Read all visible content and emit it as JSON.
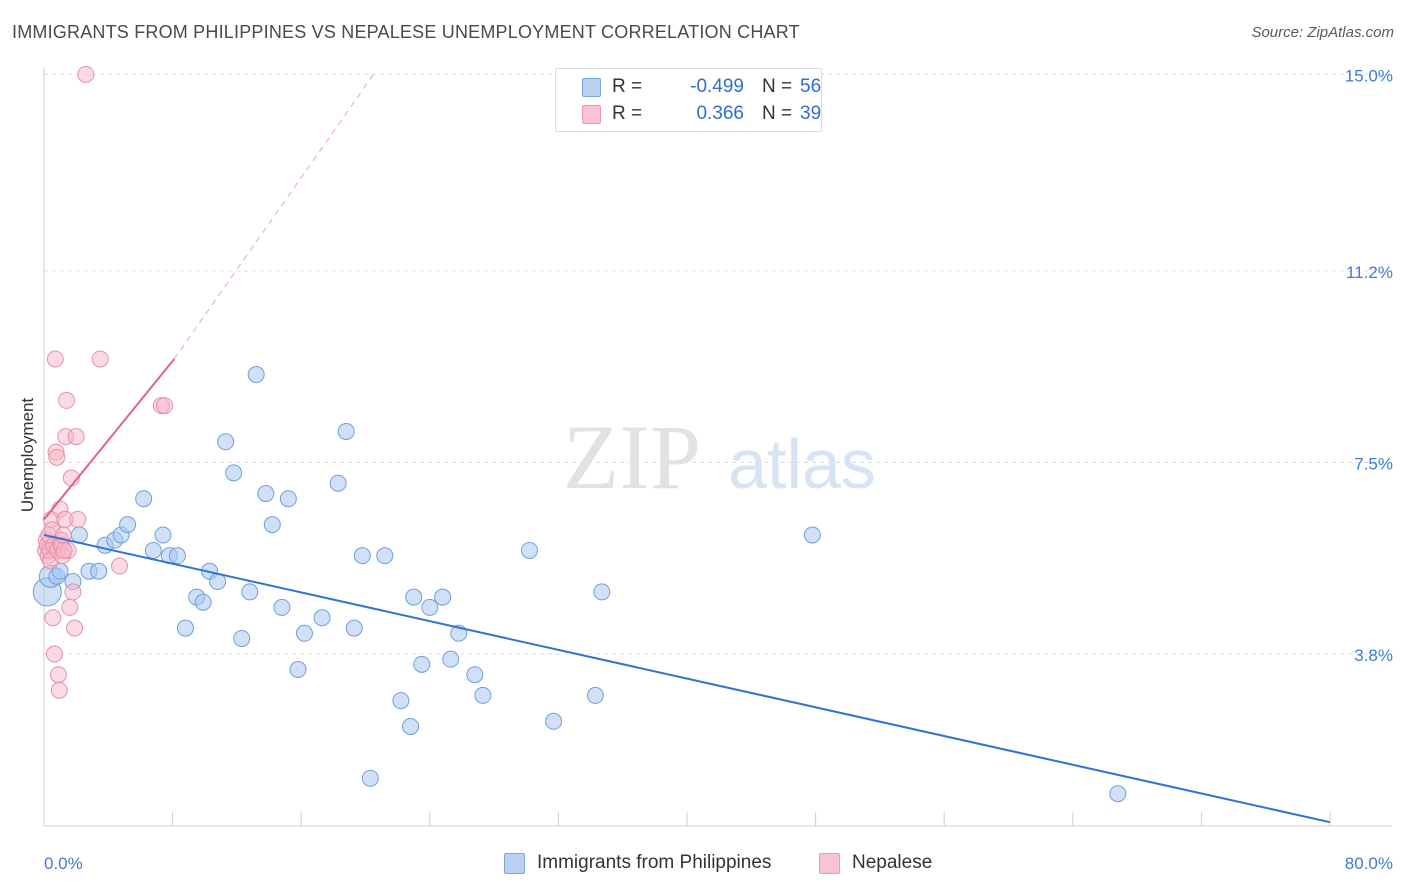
{
  "header": {
    "title": "IMMIGRANTS FROM PHILIPPINES VS NEPALESE UNEMPLOYMENT CORRELATION CHART",
    "source": "Source: ZipAtlas.com"
  },
  "watermark": {
    "zip": "ZIP",
    "atlas": "atlas"
  },
  "legend_top": [
    {
      "label": "R =",
      "r": "-0.499",
      "n_label": "N =",
      "n": "56"
    },
    {
      "label": "R =",
      "r": "0.366",
      "n_label": "N =",
      "n": "39"
    }
  ],
  "legend_bottom": [
    {
      "label": "Immigrants from Philippines"
    },
    {
      "label": "Nepalese"
    }
  ],
  "colors": {
    "blue_fill": "#a9c8f0",
    "blue_stroke": "#6e9fdc",
    "blue_line": "#2f74d0",
    "pink_fill": "#f6b5c8",
    "pink_stroke": "#e890ab",
    "pink_line": "#e0628a",
    "tick_label": "#3f7bd4",
    "grid": "#dddddd"
  },
  "chart_data": {
    "type": "scatter",
    "title": "IMMIGRANTS FROM PHILIPPINES VS NEPALESE UNEMPLOYMENT CORRELATION CHART",
    "xlabel": "",
    "ylabel": "Unemployment",
    "xlim": [
      0,
      80
    ],
    "ylim": [
      0,
      15.5
    ],
    "x_tick_labels": [
      "0.0%",
      "80.0%"
    ],
    "y_ticks": [
      3.8,
      7.5,
      11.2,
      15.0
    ],
    "y_tick_labels": [
      "3.8%",
      "7.5%",
      "11.2%",
      "15.0%"
    ],
    "grid": true,
    "legend_position": "top-center",
    "series": [
      {
        "name": "Immigrants from Philippines",
        "R": -0.499,
        "N": 56,
        "trend": {
          "x": [
            0,
            80
          ],
          "y": [
            6.1,
            0.55
          ]
        },
        "points": [
          [
            0.2,
            5.0
          ],
          [
            0.4,
            5.3
          ],
          [
            0.8,
            5.3
          ],
          [
            1.0,
            5.4
          ],
          [
            1.8,
            5.2
          ],
          [
            2.2,
            6.1
          ],
          [
            2.8,
            5.4
          ],
          [
            3.4,
            5.4
          ],
          [
            3.8,
            5.9
          ],
          [
            4.4,
            6.0
          ],
          [
            4.8,
            6.1
          ],
          [
            5.2,
            6.3
          ],
          [
            6.2,
            6.8
          ],
          [
            6.8,
            5.8
          ],
          [
            7.4,
            6.1
          ],
          [
            7.8,
            5.7
          ],
          [
            8.3,
            5.7
          ],
          [
            8.8,
            4.3
          ],
          [
            9.5,
            4.9
          ],
          [
            9.9,
            4.8
          ],
          [
            10.3,
            5.4
          ],
          [
            10.8,
            5.2
          ],
          [
            11.3,
            7.9
          ],
          [
            11.8,
            7.3
          ],
          [
            12.3,
            4.1
          ],
          [
            12.8,
            5.0
          ],
          [
            13.2,
            9.2
          ],
          [
            13.8,
            6.9
          ],
          [
            14.2,
            6.3
          ],
          [
            14.8,
            4.7
          ],
          [
            15.2,
            6.8
          ],
          [
            15.8,
            3.5
          ],
          [
            16.2,
            4.2
          ],
          [
            17.3,
            4.5
          ],
          [
            18.3,
            7.1
          ],
          [
            18.8,
            8.1
          ],
          [
            19.3,
            4.3
          ],
          [
            19.8,
            5.7
          ],
          [
            20.3,
            1.4
          ],
          [
            21.2,
            5.7
          ],
          [
            22.2,
            2.9
          ],
          [
            22.8,
            2.4
          ],
          [
            23.0,
            4.9
          ],
          [
            23.5,
            3.6
          ],
          [
            24.0,
            4.7
          ],
          [
            24.8,
            4.9
          ],
          [
            25.3,
            3.7
          ],
          [
            25.8,
            4.2
          ],
          [
            26.8,
            3.4
          ],
          [
            27.3,
            3.0
          ],
          [
            30.2,
            5.8
          ],
          [
            31.7,
            2.5
          ],
          [
            34.3,
            3.0
          ],
          [
            34.7,
            5.0
          ],
          [
            47.8,
            6.1
          ],
          [
            66.8,
            1.1
          ]
        ]
      },
      {
        "name": "Nepalese",
        "R": 0.366,
        "N": 39,
        "trend": {
          "x": [
            0,
            8.1
          ],
          "y": [
            6.4,
            9.5
          ]
        },
        "trend_extension": {
          "x": [
            8.1,
            20.5
          ],
          "y": [
            9.5,
            15.0
          ]
        },
        "points": [
          [
            0.1,
            5.8
          ],
          [
            0.15,
            6.0
          ],
          [
            0.2,
            5.9
          ],
          [
            0.25,
            5.7
          ],
          [
            0.3,
            6.1
          ],
          [
            0.35,
            5.8
          ],
          [
            0.4,
            5.6
          ],
          [
            0.45,
            6.4
          ],
          [
            0.5,
            6.2
          ],
          [
            0.55,
            4.5
          ],
          [
            0.6,
            5.9
          ],
          [
            0.65,
            3.8
          ],
          [
            0.7,
            9.5
          ],
          [
            0.75,
            7.7
          ],
          [
            0.8,
            7.6
          ],
          [
            0.85,
            5.8
          ],
          [
            0.9,
            3.4
          ],
          [
            0.95,
            3.1
          ],
          [
            1.0,
            6.6
          ],
          [
            1.05,
            6.0
          ],
          [
            1.1,
            5.9
          ],
          [
            1.15,
            5.7
          ],
          [
            1.2,
            6.1
          ],
          [
            1.3,
            6.4
          ],
          [
            1.35,
            8.0
          ],
          [
            1.4,
            8.7
          ],
          [
            1.5,
            5.8
          ],
          [
            1.6,
            4.7
          ],
          [
            1.7,
            7.2
          ],
          [
            1.8,
            5.0
          ],
          [
            1.9,
            4.3
          ],
          [
            2.0,
            8.0
          ],
          [
            2.1,
            6.4
          ],
          [
            2.6,
            15.0
          ],
          [
            3.5,
            9.5
          ],
          [
            4.7,
            5.5
          ],
          [
            7.3,
            8.6
          ],
          [
            7.5,
            8.6
          ],
          [
            1.25,
            5.8
          ]
        ]
      }
    ]
  }
}
